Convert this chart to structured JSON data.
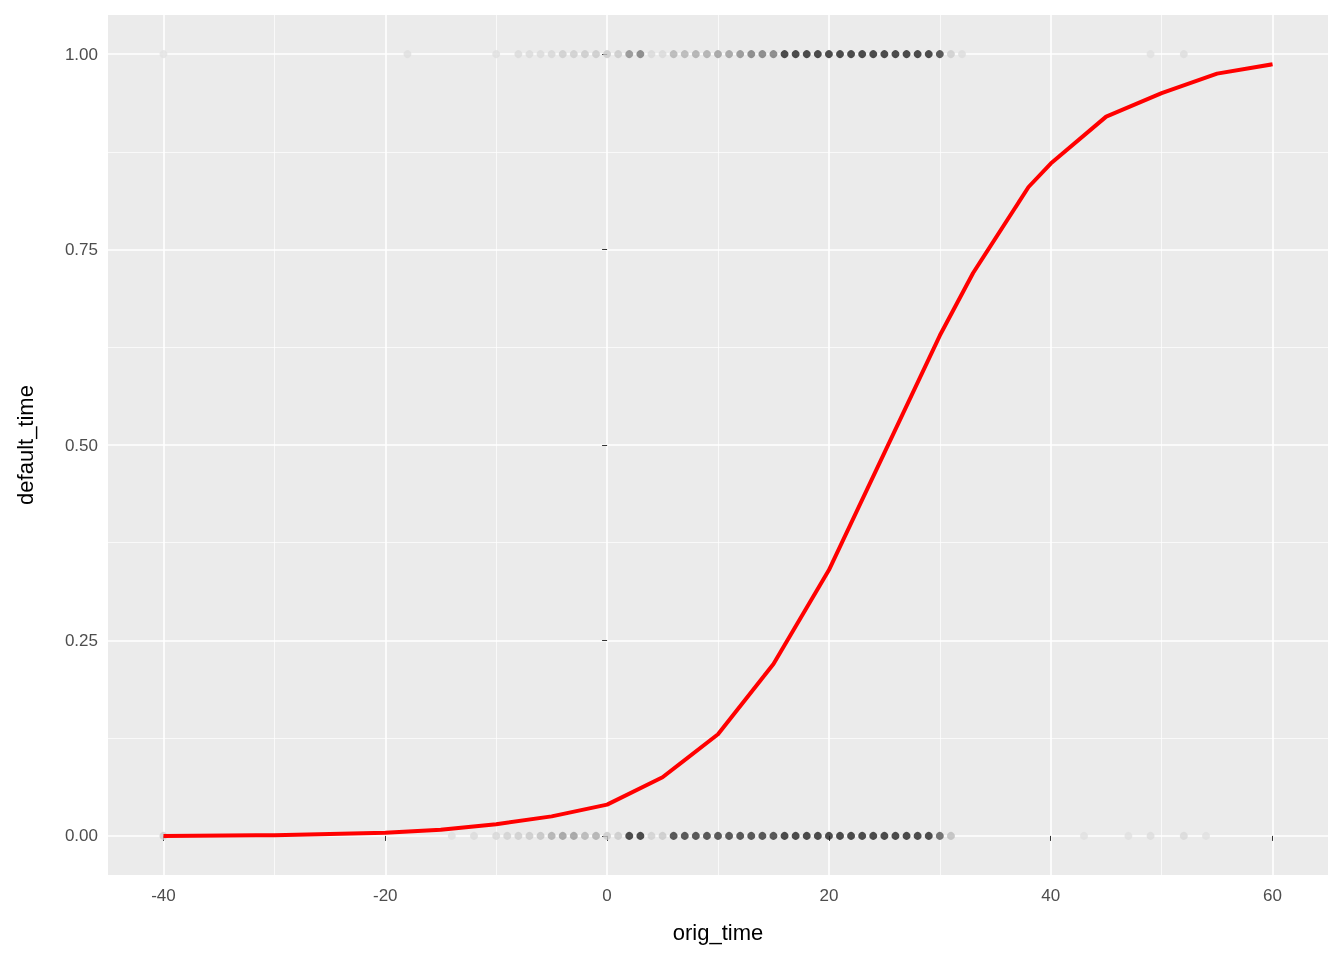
{
  "chart_data": {
    "type": "scatter",
    "xlabel": "orig_time",
    "ylabel": "default_time",
    "xlim": [
      -45,
      65
    ],
    "xticks": [
      -40,
      -20,
      0,
      20,
      40,
      60
    ],
    "ylim": [
      -0.05,
      1.05
    ],
    "yticks": [
      {
        "value": 0,
        "label": "0.00"
      },
      {
        "value": 0.25,
        "label": "0.25"
      },
      {
        "value": 0.5,
        "label": "0.50"
      },
      {
        "value": 0.75,
        "label": "0.75"
      },
      {
        "value": 1,
        "label": "1.00"
      }
    ],
    "grid": true,
    "marker": "circle",
    "series": [
      {
        "x": [
          -40,
          -18,
          -10,
          -8,
          -7,
          -6,
          -5,
          -4,
          -3,
          -2,
          -1,
          0,
          1,
          2,
          3,
          4,
          5,
          6,
          7,
          8,
          9,
          10,
          11,
          12,
          13,
          14,
          15,
          16,
          17,
          18,
          19,
          20,
          21,
          22,
          23,
          24,
          25,
          26,
          27,
          28,
          29,
          30,
          31,
          32,
          49,
          52
        ],
        "values": [
          1,
          1,
          1,
          1,
          1,
          1,
          1,
          1,
          1,
          1,
          1,
          1,
          1,
          1,
          1,
          1,
          1,
          1,
          1,
          1,
          1,
          1,
          1,
          1,
          1,
          1,
          1,
          1,
          1,
          1,
          1,
          1,
          1,
          1,
          1,
          1,
          1,
          1,
          1,
          1,
          1,
          1,
          1,
          1,
          1,
          1
        ],
        "colors": [
          "#e2e2e2",
          "#dedede",
          "#dedede",
          "#dadada",
          "#dadada",
          "#dadada",
          "#d6d6d6",
          "#cccccc",
          "#cccccc",
          "#c8c8c8",
          "#c8c8c8",
          "#c8c8c8",
          "#c8c8c8",
          "#888888",
          "#777777",
          "#d8d8d8",
          "#d8d8d8",
          "#b0b0b0",
          "#b0b0b0",
          "#a8a8a8",
          "#a8a8a8",
          "#999999",
          "#999999",
          "#888888",
          "#777777",
          "#777777",
          "#777777",
          "#222222",
          "#222222",
          "#222222",
          "#222222",
          "#222222",
          "#222222",
          "#222222",
          "#222222",
          "#222222",
          "#222222",
          "#222222",
          "#222222",
          "#222222",
          "#222222",
          "#333333",
          "#cccccc",
          "#dcdcdc",
          "#e0e0e0",
          "#dcdcdc"
        ]
      },
      {
        "x": [
          -40,
          -14,
          -12,
          -10,
          -9,
          -8,
          -7,
          -6,
          -5,
          -4,
          -3,
          -2,
          -1,
          0,
          1,
          2,
          3,
          4,
          5,
          6,
          7,
          8,
          9,
          10,
          11,
          12,
          13,
          14,
          15,
          16,
          17,
          18,
          19,
          20,
          21,
          22,
          23,
          24,
          25,
          26,
          27,
          28,
          29,
          30,
          31,
          43,
          47,
          49,
          52,
          54
        ],
        "values": [
          0,
          0,
          0,
          0,
          0,
          0,
          0,
          0,
          0,
          0,
          0,
          0,
          0,
          0,
          0,
          0,
          0,
          0,
          0,
          0,
          0,
          0,
          0,
          0,
          0,
          0,
          0,
          0,
          0,
          0,
          0,
          0,
          0,
          0,
          0,
          0,
          0,
          0,
          0,
          0,
          0,
          0,
          0,
          0,
          0,
          0,
          0,
          0,
          0,
          0
        ],
        "colors": [
          "#cccccc",
          "#dedede",
          "#dadada",
          "#d6d6d6",
          "#d0d0d0",
          "#cccccc",
          "#c8c8c8",
          "#c0c0c0",
          "#aaaaaa",
          "#999999",
          "#999999",
          "#b0b0b0",
          "#aaaaaa",
          "#c8c8c8",
          "#c8c8c8",
          "#222222",
          "#222222",
          "#d0d0d0",
          "#c8c8c8",
          "#333333",
          "#333333",
          "#333333",
          "#333333",
          "#333333",
          "#333333",
          "#333333",
          "#333333",
          "#333333",
          "#333333",
          "#222222",
          "#222222",
          "#222222",
          "#222222",
          "#222222",
          "#222222",
          "#222222",
          "#222222",
          "#222222",
          "#222222",
          "#222222",
          "#222222",
          "#222222",
          "#222222",
          "#555555",
          "#bbbbbb",
          "#e0e0e0",
          "#e0e0e0",
          "#dcdcdc",
          "#d8d8d8",
          "#e0e0e0"
        ]
      },
      {
        "type": "line",
        "color": "#ff0000",
        "marker": "none",
        "x": [
          -40,
          -30,
          -20,
          -15,
          -10,
          -5,
          0,
          5,
          10,
          15,
          20,
          25,
          30,
          33,
          38,
          40,
          45,
          50,
          55,
          60
        ],
        "values": [
          0,
          0.001,
          0.004,
          0.008,
          0.015,
          0.025,
          0.04,
          0.075,
          0.13,
          0.22,
          0.34,
          0.49,
          0.64,
          0.72,
          0.83,
          0.86,
          0.92,
          0.95,
          0.975,
          0.987
        ]
      }
    ]
  }
}
